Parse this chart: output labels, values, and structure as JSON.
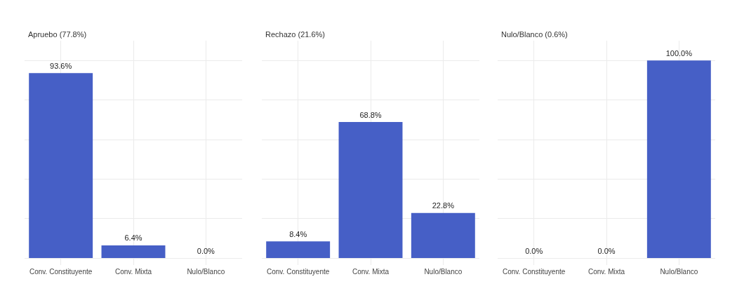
{
  "chart_data": [
    {
      "type": "bar",
      "title": "Apruebo (77.8%)",
      "categories": [
        "Conv. Constituyente",
        "Conv. Mixta",
        "Nulo/Blanco"
      ],
      "values": [
        93.6,
        6.4,
        0.0
      ],
      "value_labels": [
        "93.6%",
        "6.4%",
        "0.0%"
      ],
      "color": "#465fc6",
      "ylim": [
        0,
        110
      ],
      "yticks": [
        {
          "value": 0,
          "label": null
        },
        {
          "value": 20,
          "label": null
        },
        {
          "value": 40,
          "label": null
        },
        {
          "value": 60,
          "label": null
        },
        {
          "value": 80,
          "label": null
        },
        {
          "value": 100,
          "label": null
        }
      ],
      "grid": true,
      "tick_labels": "x"
    },
    {
      "type": "bar",
      "title": "Rechazo (21.6%)",
      "categories": [
        "Conv. Constituyente",
        "Conv. Mixta",
        "Nulo/Blanco"
      ],
      "values": [
        8.4,
        68.8,
        22.8
      ],
      "value_labels": [
        "8.4%",
        "68.8%",
        "22.8%"
      ],
      "color": "#465fc6",
      "ylim": [
        0,
        110
      ],
      "yticks": [
        {
          "value": 0,
          "label": null
        },
        {
          "value": 20,
          "label": null
        },
        {
          "value": 40,
          "label": null
        },
        {
          "value": 60,
          "label": null
        },
        {
          "value": 80,
          "label": null
        },
        {
          "value": 100,
          "label": null
        }
      ],
      "grid": true,
      "tick_labels": "x"
    },
    {
      "type": "bar",
      "title": "Nulo/Blanco (0.6%)",
      "categories": [
        "Conv. Constituyente",
        "Conv. Mixta",
        "Nulo/Blanco"
      ],
      "values": [
        0.0,
        0.0,
        100.0
      ],
      "value_labels": [
        "0.0%",
        "0.0%",
        "100.0%"
      ],
      "color": "#465fc6",
      "ylim": [
        0,
        110
      ],
      "yticks": [
        {
          "value": 0,
          "label": null
        },
        {
          "value": 20,
          "label": null
        },
        {
          "value": 40,
          "label": null
        },
        {
          "value": 60,
          "label": null
        },
        {
          "value": 80,
          "label": null
        },
        {
          "value": 100,
          "label": null
        }
      ],
      "grid": true,
      "tick_labels": "x"
    }
  ]
}
